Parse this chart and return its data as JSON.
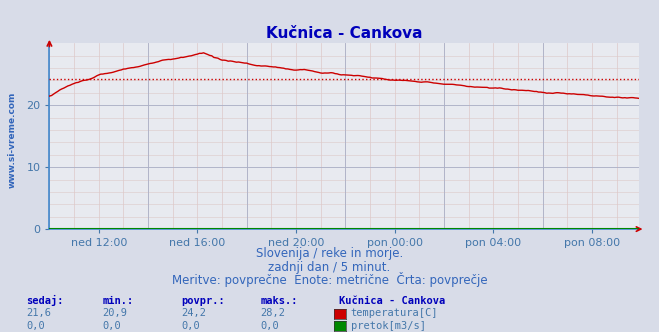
{
  "title": "Kučnica - Cankova",
  "background_color": "#d8dce8",
  "plot_background_color": "#e8eaf0",
  "grid_color_major": "#aab0c8",
  "grid_color_minor": "#ddc8c8",
  "title_color": "#0000bb",
  "title_fontsize": 11,
  "tick_label_color": "#4477aa",
  "temp_line_color": "#cc0000",
  "flow_line_color": "#008800",
  "avg_line_color": "#cc0000",
  "avg_value": 24.2,
  "ylim": [
    0,
    30
  ],
  "yticks": [
    0,
    10,
    20
  ],
  "watermark": "www.si-vreme.com",
  "watermark_color": "#3366bb",
  "subtitle1": "Slovenija / reke in morje.",
  "subtitle2": "zadnji dan / 5 minut.",
  "subtitle3": "Meritve: povprečne  Enote: metrične  Črta: povprečje",
  "subtitle_color": "#3366bb",
  "subtitle_fontsize": 8.5,
  "footer_label_color": "#0000bb",
  "footer_value_color": "#4477aa",
  "footer_headers": [
    "sedaj:",
    "min.:",
    "povpr.:",
    "maks.:"
  ],
  "footer_values_temp": [
    "21,6",
    "20,9",
    "24,2",
    "28,2"
  ],
  "footer_values_flow": [
    "0,0",
    "0,0",
    "0,0",
    "0,0"
  ],
  "footer_station": "Kučnica - Cankova",
  "footer_legend1": "temperatura[C]",
  "footer_legend2": "pretok[m3/s]",
  "xtick_labels": [
    "ned 12:00",
    "ned 16:00",
    "ned 20:00",
    "pon 00:00",
    "pon 04:00",
    "pon 08:00"
  ],
  "n_points": 288,
  "spine_color": "#4488cc",
  "arrow_color": "#cc0000"
}
